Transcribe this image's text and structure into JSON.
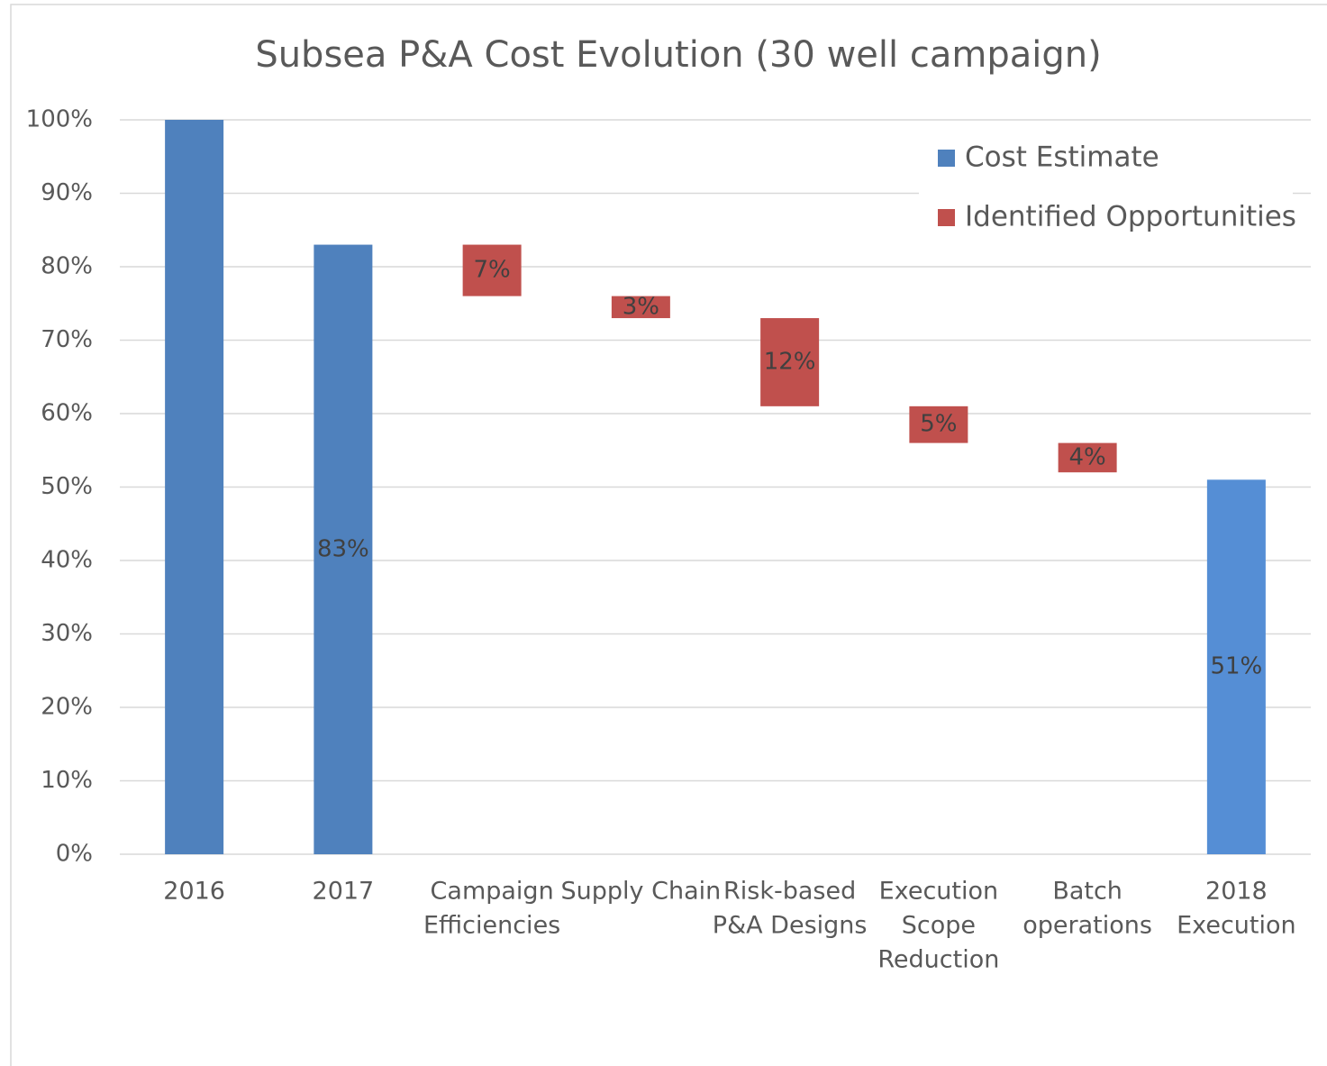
{
  "chart_data": {
    "type": "waterfall",
    "title": "Subsea P&A Cost Evolution (30 well campaign)",
    "categories": [
      [
        "2016"
      ],
      [
        "2017"
      ],
      [
        "Campaign",
        "Efficiencies"
      ],
      [
        "Supply Chain"
      ],
      [
        "Risk-based",
        "P&A Designs"
      ],
      [
        "Execution",
        "Scope",
        "Reduction"
      ],
      [
        "Batch",
        "operations"
      ],
      [
        "2018",
        "Execution"
      ]
    ],
    "series": [
      {
        "name": "Cost Estimate",
        "color": "#4f81bd",
        "colors": [
          "#4f81bd",
          "#4f81bd",
          null,
          null,
          null,
          null,
          null,
          "#558ed5"
        ],
        "values": [
          100,
          83,
          null,
          null,
          null,
          null,
          null,
          51
        ],
        "value_labels": [
          null,
          "83%",
          null,
          null,
          null,
          null,
          null,
          "51%"
        ]
      },
      {
        "name": "Identified Opportunities",
        "color": "#c0504d",
        "floating": true,
        "values": [
          null,
          null,
          7,
          3,
          12,
          5,
          4,
          null
        ],
        "value_labels": [
          null,
          null,
          "7%",
          "3%",
          "12%",
          "5%",
          "4%",
          null
        ]
      }
    ],
    "ylim": [
      0,
      100
    ],
    "yticks": [
      {
        "value": 0,
        "label": "0%"
      },
      {
        "value": 10,
        "label": "10%"
      },
      {
        "value": 20,
        "label": "20%"
      },
      {
        "value": 30,
        "label": "30%"
      },
      {
        "value": 40,
        "label": "40%"
      },
      {
        "value": 50,
        "label": "50%"
      },
      {
        "value": 60,
        "label": "60%"
      },
      {
        "value": 70,
        "label": "70%"
      },
      {
        "value": 80,
        "label": "80%"
      },
      {
        "value": 90,
        "label": "90%"
      },
      {
        "value": 100,
        "label": "100%"
      }
    ],
    "grid": true,
    "legend": "top-right"
  }
}
